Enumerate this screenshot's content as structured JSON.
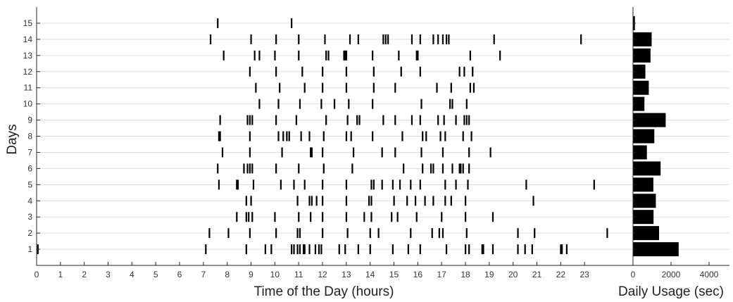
{
  "chart_data": [
    {
      "type": "event-raster",
      "xlabel": "Time of the Day (hours)",
      "ylabel": "Days",
      "xlim": [
        0,
        24
      ],
      "ylim": [
        0,
        16
      ],
      "xticks": [
        "0",
        "1",
        "2",
        "3",
        "4",
        "5",
        "6",
        "7",
        "8",
        "9",
        "10",
        "11",
        "12",
        "13",
        "14",
        "15",
        "16",
        "17",
        "18",
        "19",
        "20",
        "21",
        "22",
        "23"
      ],
      "yticks": [
        "1",
        "2",
        "3",
        "4",
        "5",
        "6",
        "7",
        "8",
        "9",
        "10",
        "11",
        "12",
        "13",
        "14",
        "15"
      ],
      "grid": "horizontal",
      "mark_color": "#000000",
      "events": [
        {
          "day": 1,
          "hours": [
            0.05,
            7.1,
            8.8,
            9.6,
            9.85,
            10.7,
            10.8,
            10.95,
            11.05,
            11.2,
            11.25,
            11.45,
            11.7,
            11.85,
            11.95,
            12.7,
            12.95,
            13.5,
            14.0,
            14.95,
            15.6,
            16.1,
            17.2,
            18.0,
            18.15,
            18.7,
            18.75,
            19.15,
            20.2,
            20.5,
            20.8,
            22.0,
            22.05,
            22.25
          ]
        },
        {
          "day": 2,
          "hours": [
            7.25,
            8.05,
            8.95,
            10.05,
            10.95,
            11.05,
            12.0,
            13.05,
            14.0,
            14.35,
            15.7,
            16.6,
            16.9,
            17.05,
            18.05,
            20.2,
            20.9,
            23.95
          ]
        },
        {
          "day": 3,
          "hours": [
            8.4,
            8.8,
            8.9,
            9.05,
            10.0,
            11.0,
            11.5,
            12.0,
            13.0,
            13.75,
            14.05,
            14.9,
            15.15,
            15.95,
            17.0,
            18.0,
            19.15
          ]
        },
        {
          "day": 4,
          "hours": [
            8.8,
            9.0,
            10.95,
            11.45,
            11.55,
            11.75,
            12.0,
            13.0,
            13.95,
            14.05,
            15.0,
            15.55,
            15.9,
            16.3,
            16.65,
            17.15,
            17.4,
            18.0,
            20.85
          ]
        },
        {
          "day": 5,
          "hours": [
            7.65,
            8.4,
            8.45,
            9.1,
            10.25,
            10.8,
            11.25,
            12.0,
            13.0,
            14.05,
            14.15,
            14.5,
            14.95,
            15.25,
            15.7,
            16.1,
            17.15,
            17.6,
            18.1,
            20.55,
            23.4
          ]
        },
        {
          "day": 6,
          "hours": [
            7.6,
            8.7,
            8.85,
            8.95,
            9.05,
            10.05,
            11.0,
            12.05,
            13.25,
            15.4,
            16.2,
            16.55,
            16.65,
            17.05,
            17.45,
            17.75,
            17.8,
            17.9,
            18.15
          ]
        },
        {
          "day": 7,
          "hours": [
            7.8,
            8.95,
            10.3,
            11.5,
            11.55,
            12.0,
            13.3,
            14.5,
            15.05,
            16.15,
            17.05,
            18.15,
            19.05
          ]
        },
        {
          "day": 8,
          "hours": [
            7.65,
            7.7,
            8.95,
            10.15,
            10.35,
            10.5,
            10.6,
            11.1,
            11.45,
            12.05,
            13.0,
            13.2,
            14.1,
            15.35,
            16.2,
            16.35,
            16.95,
            17.15,
            17.9,
            18.25
          ]
        },
        {
          "day": 9,
          "hours": [
            7.7,
            8.85,
            8.95,
            9.05,
            10.05,
            10.9,
            12.15,
            13.05,
            13.45,
            13.55,
            14.55,
            15.05,
            15.75,
            16.1,
            16.85,
            17.1,
            17.6,
            17.95,
            18.05,
            18.15
          ]
        },
        {
          "day": 10,
          "hours": [
            9.35,
            10.15,
            11.05,
            11.95,
            12.5,
            13.1,
            14.1,
            16.15,
            17.35,
            17.45,
            18.05
          ]
        },
        {
          "day": 11,
          "hours": [
            9.2,
            10.2,
            11.25,
            12.0,
            13.0,
            14.15,
            15.05,
            16.8,
            17.4,
            18.2,
            18.35
          ]
        },
        {
          "day": 12,
          "hours": [
            8.95,
            10.05,
            11.15,
            12.0,
            13.0,
            14.15,
            15.3,
            16.1,
            17.75,
            17.95,
            18.3
          ]
        },
        {
          "day": 13,
          "hours": [
            7.85,
            9.15,
            9.35,
            10.0,
            11.0,
            12.15,
            12.25,
            12.9,
            12.95,
            13.0,
            14.1,
            15.2,
            15.95,
            16.0,
            18.2,
            19.45
          ]
        },
        {
          "day": 14,
          "hours": [
            7.3,
            9.0,
            10.05,
            11.0,
            12.1,
            13.15,
            13.5,
            14.55,
            14.65,
            14.75,
            15.75,
            16.1,
            16.65,
            16.85,
            17.05,
            17.2,
            17.3,
            19.2,
            22.85
          ]
        },
        {
          "day": 15,
          "hours": [
            7.6,
            10.7
          ]
        }
      ]
    },
    {
      "type": "bar",
      "orientation": "horizontal",
      "xlabel": "Daily Usage (sec)",
      "xlim": [
        0,
        4000
      ],
      "xticks": [
        "0",
        "2000",
        "4000"
      ],
      "categories": [
        "1",
        "2",
        "3",
        "4",
        "5",
        "6",
        "7",
        "8",
        "9",
        "10",
        "11",
        "12",
        "13",
        "14",
        "15"
      ],
      "values": [
        2400,
        1370,
        1080,
        1200,
        1070,
        1450,
        730,
        1120,
        1720,
        600,
        830,
        650,
        920,
        980,
        100
      ],
      "bar_color": "#000000"
    }
  ]
}
